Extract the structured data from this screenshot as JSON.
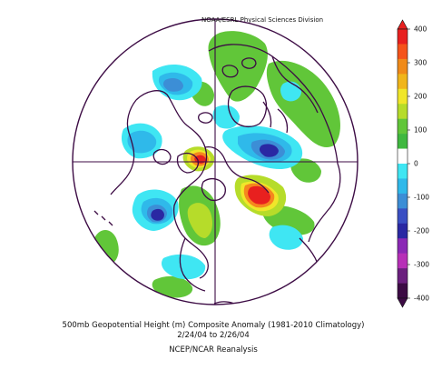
{
  "map": {
    "credit": "NOAA/ESRL Physical Sciences Division",
    "title_line": "500mb Geopotential Height (m) Composite Anomaly (1981-2010 Climatology)",
    "date_line": "2/24/04  to 2/26/04",
    "source_line": "NCEP/NCAR Reanalysis",
    "projection": "polar stereographic, Northern Hemisphere"
  },
  "colorbar": {
    "labels": [
      "400",
      "300",
      "200",
      "100",
      "0",
      "-100",
      "-200",
      "-300",
      "-400"
    ],
    "colors": [
      "#e8201f",
      "#f5531a",
      "#f08a19",
      "#f0b51a",
      "#f0e62a",
      "#b6dc2a",
      "#61c639",
      "#3fb83f",
      "#ffffff",
      "#3fe6f3",
      "#2fb9ea",
      "#3c8ed6",
      "#3a4fc3",
      "#2a28a3",
      "#8b28b5",
      "#b72fb7",
      "#6b1f7e",
      "#3c0b44"
    ]
  },
  "colors": {
    "positive_strong": "#e8201f",
    "positive_orange": "#f5871e",
    "positive_yellow": "#f0e62a",
    "positive_green": "#61c639",
    "negative_light": "#3fe6f3",
    "negative_mid": "#3c8ed6",
    "negative_strong": "#2a28a3",
    "coastline": "#3c0b44"
  }
}
